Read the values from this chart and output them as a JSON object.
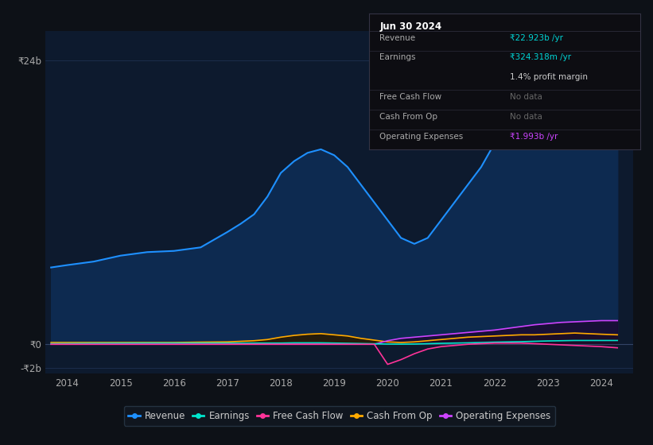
{
  "bg_color": "#0d1117",
  "plot_bg_color": "#0d1a2e",
  "grid_color": "#1e3050",
  "title_box": {
    "date": "Jun 30 2024",
    "bg_color": "#0d0d12",
    "rows": [
      {
        "label": "Revenue",
        "value": "₹22.923b /yr",
        "value_color": "#00d4d4",
        "divider": true
      },
      {
        "label": "Earnings",
        "value": "₹324.318m /yr",
        "value_color": "#00d4d4",
        "divider": false
      },
      {
        "label": "",
        "value": "1.4% profit margin",
        "value_color": "#cccccc",
        "divider": true
      },
      {
        "label": "Free Cash Flow",
        "value": "No data",
        "value_color": "#666666",
        "divider": true
      },
      {
        "label": "Cash From Op",
        "value": "No data",
        "value_color": "#666666",
        "divider": true
      },
      {
        "label": "Operating Expenses",
        "value": "₹1.993b /yr",
        "value_color": "#cc44ff",
        "divider": false
      }
    ]
  },
  "years": [
    2013.7,
    2014.0,
    2014.5,
    2015.0,
    2015.5,
    2016.0,
    2016.5,
    2017.0,
    2017.25,
    2017.5,
    2017.75,
    2018.0,
    2018.25,
    2018.5,
    2018.75,
    2019.0,
    2019.25,
    2019.5,
    2019.75,
    2020.0,
    2020.25,
    2020.5,
    2020.75,
    2021.0,
    2021.25,
    2021.5,
    2021.75,
    2022.0,
    2022.25,
    2022.5,
    2022.75,
    2023.0,
    2023.25,
    2023.5,
    2023.75,
    2024.0,
    2024.3
  ],
  "revenue": [
    6.5,
    6.7,
    7.0,
    7.5,
    7.8,
    7.9,
    8.2,
    9.5,
    10.2,
    11.0,
    12.5,
    14.5,
    15.5,
    16.2,
    16.5,
    16.0,
    15.0,
    13.5,
    12.0,
    10.5,
    9.0,
    8.5,
    9.0,
    10.5,
    12.0,
    13.5,
    15.0,
    17.0,
    18.5,
    19.5,
    20.5,
    22.5,
    23.5,
    23.8,
    23.5,
    22.9,
    22.9
  ],
  "earnings": [
    0.05,
    0.06,
    0.08,
    0.09,
    0.1,
    0.1,
    0.1,
    0.1,
    0.1,
    0.1,
    0.1,
    0.1,
    0.12,
    0.12,
    0.12,
    0.1,
    0.08,
    0.06,
    0.04,
    0.02,
    0.01,
    0.02,
    0.05,
    0.08,
    0.1,
    0.12,
    0.15,
    0.18,
    0.2,
    0.22,
    0.25,
    0.28,
    0.3,
    0.32,
    0.32,
    0.32,
    0.32
  ],
  "free_cash_flow": [
    0.0,
    0.0,
    0.0,
    0.0,
    0.0,
    0.0,
    0.0,
    0.0,
    0.0,
    0.0,
    0.0,
    0.0,
    0.0,
    0.0,
    0.0,
    0.0,
    0.0,
    0.0,
    0.0,
    -1.7,
    -1.3,
    -0.8,
    -0.4,
    -0.2,
    -0.1,
    0.0,
    0.05,
    0.1,
    0.1,
    0.1,
    0.05,
    0.0,
    -0.05,
    -0.1,
    -0.15,
    -0.2,
    -0.3
  ],
  "cash_from_op": [
    0.15,
    0.15,
    0.15,
    0.15,
    0.15,
    0.15,
    0.18,
    0.2,
    0.25,
    0.3,
    0.4,
    0.6,
    0.75,
    0.85,
    0.9,
    0.8,
    0.7,
    0.5,
    0.35,
    0.2,
    0.15,
    0.2,
    0.3,
    0.4,
    0.5,
    0.6,
    0.65,
    0.7,
    0.75,
    0.8,
    0.8,
    0.85,
    0.9,
    0.95,
    0.9,
    0.85,
    0.8
  ],
  "op_expenses": [
    0.0,
    0.0,
    0.0,
    0.0,
    0.0,
    0.0,
    0.0,
    0.0,
    0.0,
    0.0,
    0.0,
    0.0,
    0.0,
    0.0,
    0.0,
    0.0,
    0.0,
    0.0,
    0.0,
    0.3,
    0.5,
    0.6,
    0.7,
    0.8,
    0.9,
    1.0,
    1.1,
    1.2,
    1.35,
    1.5,
    1.65,
    1.75,
    1.85,
    1.9,
    1.95,
    2.0,
    2.0
  ],
  "revenue_color": "#1e90ff",
  "revenue_fill": "#0d2a50",
  "earnings_color": "#00e5cc",
  "free_cash_flow_color": "#ff3399",
  "cash_from_op_color": "#ffaa00",
  "op_expenses_color": "#cc44ff",
  "ylim": [
    -2.5,
    26.5
  ],
  "ytick_vals": [
    -2,
    0,
    24
  ],
  "ytick_labels": [
    "-₹2b",
    "₹0",
    "₹24b"
  ],
  "xticks": [
    2014,
    2015,
    2016,
    2017,
    2018,
    2019,
    2020,
    2021,
    2022,
    2023,
    2024
  ],
  "xmin": 2013.6,
  "xmax": 2024.6,
  "legend": [
    {
      "label": "Revenue",
      "color": "#1e90ff"
    },
    {
      "label": "Earnings",
      "color": "#00e5cc"
    },
    {
      "label": "Free Cash Flow",
      "color": "#ff3399"
    },
    {
      "label": "Cash From Op",
      "color": "#ffaa00"
    },
    {
      "label": "Operating Expenses",
      "color": "#cc44ff"
    }
  ]
}
